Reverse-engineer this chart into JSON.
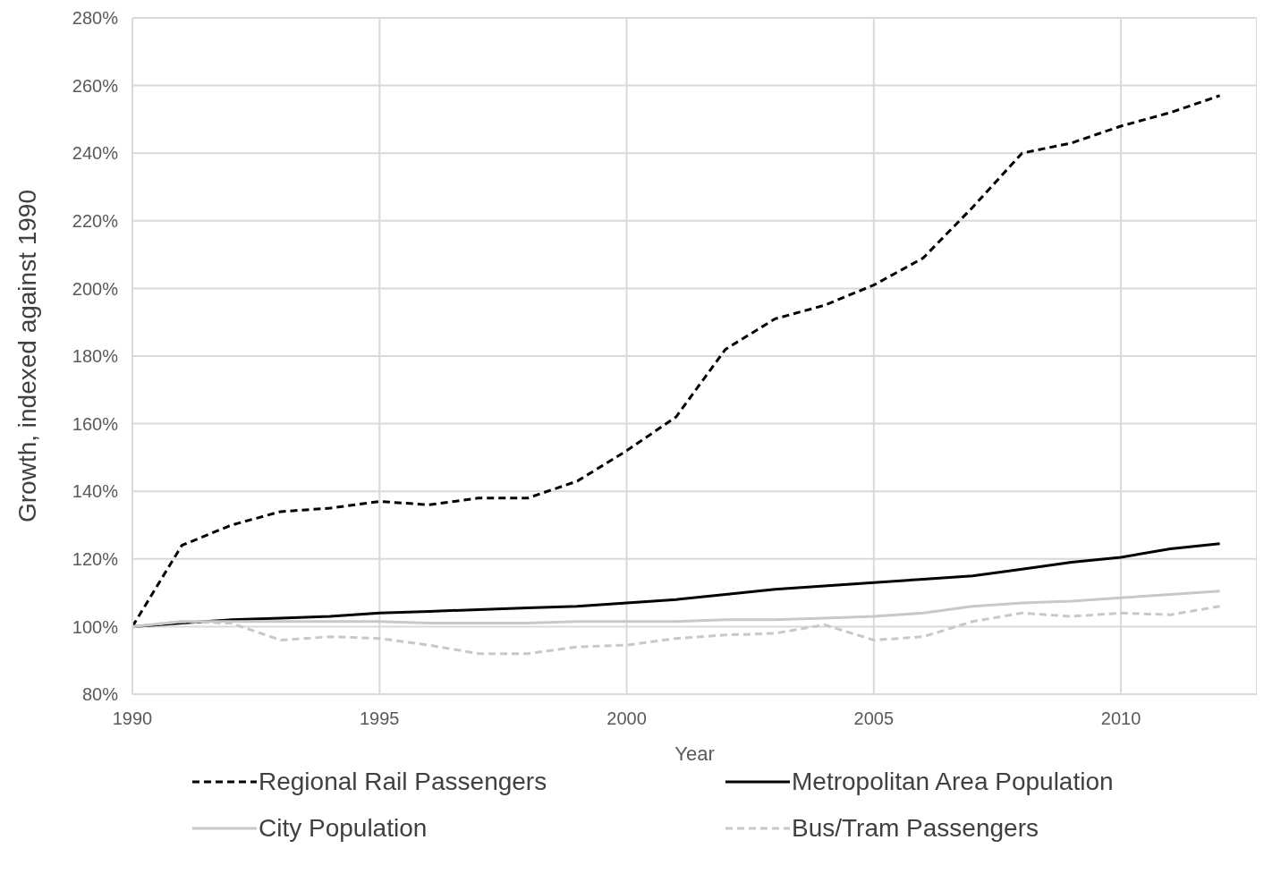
{
  "chart_data": {
    "type": "line",
    "xlabel": "Year",
    "ylabel": "Growth, indexed against 1990",
    "x": [
      1990,
      1991,
      1992,
      1993,
      1994,
      1995,
      1996,
      1997,
      1998,
      1999,
      2000,
      2001,
      2002,
      2003,
      2004,
      2005,
      2006,
      2007,
      2008,
      2009,
      2010,
      2011,
      2012
    ],
    "xlim": [
      1990,
      2012.75
    ],
    "xticks": [
      1990,
      1995,
      2000,
      2005,
      2010
    ],
    "ylim": [
      80,
      280
    ],
    "yticks": [
      {
        "value": 80,
        "label": "80%"
      },
      {
        "value": 100,
        "label": "100%"
      },
      {
        "value": 120,
        "label": "120%"
      },
      {
        "value": 140,
        "label": "140%"
      },
      {
        "value": 160,
        "label": "160%"
      },
      {
        "value": 180,
        "label": "180%"
      },
      {
        "value": 200,
        "label": "200%"
      },
      {
        "value": 220,
        "label": "220%"
      },
      {
        "value": 240,
        "label": "240%"
      },
      {
        "value": 260,
        "label": "260%"
      },
      {
        "value": 280,
        "label": "280%"
      }
    ],
    "grid": true,
    "legend": "bottom",
    "marker": "none",
    "series": [
      {
        "name": "Regional Rail Passengers",
        "color": "#000000",
        "line_style": "dashed",
        "values": [
          100,
          124,
          130,
          134,
          135,
          137,
          136,
          138,
          138,
          143,
          152,
          162,
          182,
          191,
          195,
          201,
          209,
          224,
          240,
          243,
          248,
          252,
          257
        ]
      },
      {
        "name": "Metropolitan Area Population",
        "color": "#000000",
        "line_style": "solid",
        "values": [
          100,
          101,
          102,
          102.5,
          103,
          104,
          104.5,
          105,
          105.5,
          106,
          107,
          108,
          109.5,
          111,
          112,
          113,
          114,
          115,
          117,
          119,
          120.5,
          123,
          124.5
        ]
      },
      {
        "name": "City Population",
        "color": "#c8c8c8",
        "line_style": "solid",
        "values": [
          100,
          101.5,
          101.5,
          101.5,
          101.5,
          101.5,
          101,
          101,
          101,
          101.5,
          101.5,
          101.5,
          102,
          102,
          102.5,
          103,
          104,
          106,
          107,
          107.5,
          108.5,
          109.5,
          110.5
        ]
      },
      {
        "name": "Bus/Tram Passengers",
        "color": "#c8c8c8",
        "line_style": "dashed",
        "values": [
          100,
          101.5,
          101,
          96,
          97,
          96.5,
          94.5,
          92,
          92,
          94,
          94.5,
          96.5,
          97.5,
          98,
          100.5,
          96,
          97,
          101.5,
          104,
          103,
          104,
          103.5,
          106
        ]
      }
    ]
  }
}
